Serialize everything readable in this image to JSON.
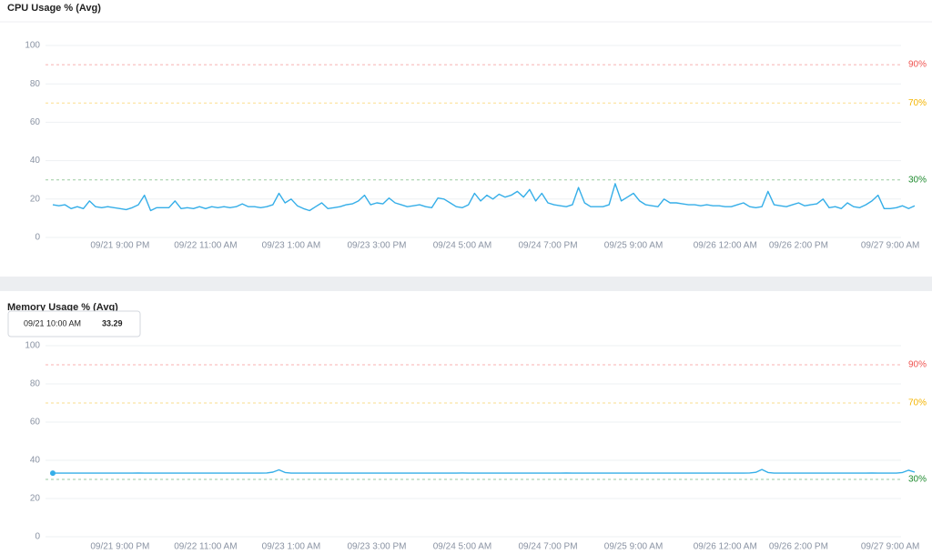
{
  "chart_data": [
    {
      "type": "line",
      "title": "CPU Usage % (Avg)",
      "color": "#35aee8",
      "grid": true,
      "ylim": [
        0,
        100
      ],
      "yticks": [
        0,
        20,
        40,
        60,
        80,
        100
      ],
      "thresholds": [
        {
          "value": 90,
          "label": "90%",
          "color": "#ef5350"
        },
        {
          "value": 70,
          "label": "70%",
          "color": "#f4b400"
        },
        {
          "value": 30,
          "label": "30%",
          "color": "#1e8a2e"
        }
      ],
      "categories": [
        null,
        null,
        null,
        null,
        null,
        null,
        null,
        null,
        null,
        null,
        null,
        "09/21 9:00 PM",
        null,
        null,
        null,
        null,
        null,
        null,
        null,
        null,
        null,
        null,
        null,
        null,
        null,
        "09/22 11:00 AM",
        null,
        null,
        null,
        null,
        null,
        null,
        null,
        null,
        null,
        null,
        null,
        null,
        null,
        "09/23 1:00 AM",
        null,
        null,
        null,
        null,
        null,
        null,
        null,
        null,
        null,
        null,
        null,
        null,
        null,
        "09/23 3:00 PM",
        null,
        null,
        null,
        null,
        null,
        null,
        null,
        null,
        null,
        null,
        null,
        null,
        null,
        "09/24 5:00 AM",
        null,
        null,
        null,
        null,
        null,
        null,
        null,
        null,
        null,
        null,
        null,
        null,
        null,
        "09/24 7:00 PM",
        null,
        null,
        null,
        null,
        null,
        null,
        null,
        null,
        null,
        null,
        null,
        null,
        null,
        "09/25 9:00 AM",
        null,
        null,
        null,
        null,
        null,
        null,
        null,
        null,
        null,
        null,
        null,
        null,
        null,
        null,
        "09/26 12:00 AM",
        null,
        null,
        null,
        null,
        null,
        null,
        null,
        null,
        null,
        null,
        null,
        "09/26 2:00 PM",
        null,
        null,
        null,
        null,
        null,
        null,
        null,
        null,
        null,
        null,
        null,
        null,
        null,
        null,
        "09/27 9:00 AM",
        null,
        null,
        null,
        null
      ],
      "values": [
        17,
        16.5,
        17,
        15,
        16,
        15,
        19,
        16,
        15.5,
        16,
        15.5,
        15,
        14.5,
        15.5,
        17,
        22,
        14,
        15.5,
        15.5,
        15.5,
        19,
        15,
        15.5,
        15,
        16,
        15,
        16,
        15.5,
        16,
        15.5,
        16,
        17.5,
        16,
        16,
        15.5,
        16,
        17,
        23,
        18,
        20,
        16.5,
        15,
        14,
        16,
        18,
        15,
        15.5,
        16,
        17,
        17.5,
        19,
        22,
        17,
        18,
        17.5,
        20.5,
        18,
        17,
        16,
        16.5,
        17,
        16,
        15.5,
        20.5,
        20,
        18,
        16,
        15.5,
        17,
        23,
        19,
        22,
        20,
        22.5,
        21,
        22,
        24,
        21,
        25,
        19,
        23,
        18,
        17,
        16.5,
        16,
        17,
        26,
        18,
        16,
        16,
        16,
        17,
        28,
        19,
        21,
        23,
        19,
        17,
        16.5,
        16,
        20,
        18,
        18,
        17.5,
        17,
        17,
        16.5,
        17,
        16.5,
        16.5,
        16,
        16,
        17,
        18,
        16,
        15.5,
        16,
        24,
        17,
        16.5,
        16,
        17,
        18,
        16.5,
        17,
        17.5,
        20,
        15.5,
        16,
        15,
        18,
        16,
        15.5,
        17,
        19,
        22,
        15,
        15,
        15.5,
        16.5,
        15,
        16.5
      ]
    },
    {
      "type": "line",
      "title": "Memory Usage % (Avg)",
      "color": "#35aee8",
      "grid": true,
      "ylim": [
        0,
        100
      ],
      "yticks": [
        0,
        20,
        40,
        60,
        80,
        100
      ],
      "thresholds": [
        {
          "value": 90,
          "label": "90%",
          "color": "#ef5350"
        },
        {
          "value": 70,
          "label": "70%",
          "color": "#f4b400"
        },
        {
          "value": 30,
          "label": "30%",
          "color": "#1e8a2e"
        }
      ],
      "tooltip": {
        "label": "09/21 10:00 AM"
      },
      "categories": [
        null,
        null,
        null,
        null,
        null,
        null,
        null,
        null,
        null,
        null,
        null,
        "09/21 9:00 PM",
        null,
        null,
        null,
        null,
        null,
        null,
        null,
        null,
        null,
        null,
        null,
        null,
        null,
        "09/22 11:00 AM",
        null,
        null,
        null,
        null,
        null,
        null,
        null,
        null,
        null,
        null,
        null,
        null,
        null,
        "09/23 1:00 AM",
        null,
        null,
        null,
        null,
        null,
        null,
        null,
        null,
        null,
        null,
        null,
        null,
        null,
        "09/23 3:00 PM",
        null,
        null,
        null,
        null,
        null,
        null,
        null,
        null,
        null,
        null,
        null,
        null,
        null,
        "09/24 5:00 AM",
        null,
        null,
        null,
        null,
        null,
        null,
        null,
        null,
        null,
        null,
        null,
        null,
        null,
        "09/24 7:00 PM",
        null,
        null,
        null,
        null,
        null,
        null,
        null,
        null,
        null,
        null,
        null,
        null,
        null,
        "09/25 9:00 AM",
        null,
        null,
        null,
        null,
        null,
        null,
        null,
        null,
        null,
        null,
        null,
        null,
        null,
        null,
        "09/26 12:00 AM",
        null,
        null,
        null,
        null,
        null,
        null,
        null,
        null,
        null,
        null,
        null,
        "09/26 2:00 PM",
        null,
        null,
        null,
        null,
        null,
        null,
        null,
        null,
        null,
        null,
        null,
        null,
        null,
        null,
        "09/27 9:00 AM",
        null,
        null,
        null,
        null
      ],
      "values": [
        33.29,
        33.3,
        33.3,
        33.3,
        33.3,
        33.3,
        33.3,
        33.3,
        33.3,
        33.3,
        33.3,
        33.3,
        33.3,
        33.3,
        33.4,
        33.3,
        33.3,
        33.3,
        33.3,
        33.3,
        33.3,
        33.3,
        33.3,
        33.3,
        33.3,
        33.3,
        33.3,
        33.3,
        33.3,
        33.3,
        33.3,
        33.3,
        33.3,
        33.3,
        33.3,
        33.4,
        33.8,
        35,
        33.6,
        33.3,
        33.3,
        33.3,
        33.3,
        33.3,
        33.3,
        33.3,
        33.3,
        33.3,
        33.3,
        33.3,
        33.3,
        33.3,
        33.3,
        33.3,
        33.3,
        33.3,
        33.3,
        33.3,
        33.3,
        33.3,
        33.3,
        33.3,
        33.3,
        33.3,
        33.3,
        33.3,
        33.3,
        33.4,
        33.3,
        33.3,
        33.3,
        33.3,
        33.3,
        33.3,
        33.3,
        33.3,
        33.3,
        33.3,
        33.3,
        33.3,
        33.3,
        33.3,
        33.3,
        33.3,
        33.4,
        33.3,
        33.3,
        33.3,
        33.3,
        33.3,
        33.3,
        33.3,
        33.3,
        33.3,
        33.3,
        33.3,
        33.3,
        33.3,
        33.3,
        33.3,
        33.3,
        33.3,
        33.3,
        33.3,
        33.3,
        33.3,
        33.3,
        33.3,
        33.3,
        33.3,
        33.3,
        33.3,
        33.3,
        33.3,
        33.4,
        33.7,
        35.2,
        33.6,
        33.3,
        33.3,
        33.3,
        33.3,
        33.3,
        33.3,
        33.3,
        33.3,
        33.3,
        33.3,
        33.3,
        33.3,
        33.3,
        33.3,
        33.3,
        33.3,
        33.4,
        33.3,
        33.3,
        33.3,
        33.3,
        33.6,
        34.8,
        33.8
      ]
    }
  ]
}
